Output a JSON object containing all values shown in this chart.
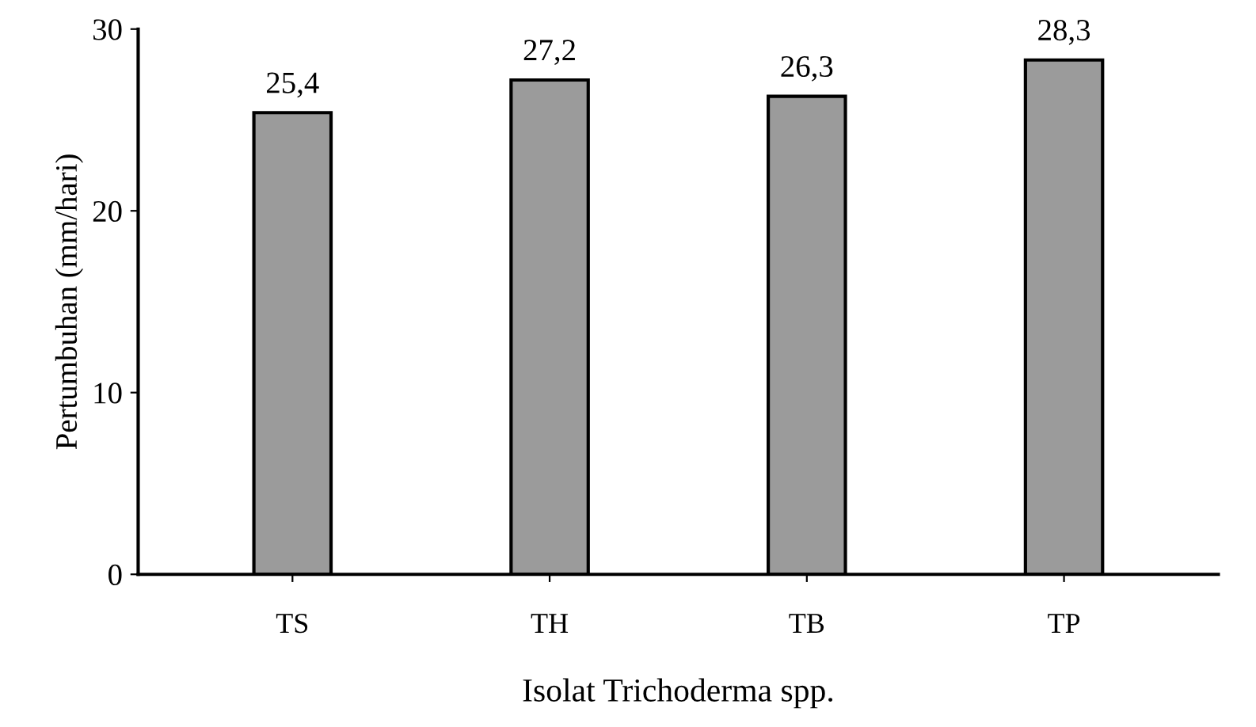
{
  "chart_data": {
    "type": "bar",
    "xlabel": "Isolat Trichoderma spp.",
    "ylabel": "Pertumbuhan (mm/hari)",
    "categories": [
      "TS",
      "TH",
      "TB",
      "TP"
    ],
    "values": [
      25.4,
      27.2,
      26.3,
      28.3
    ],
    "value_labels": [
      "25,4",
      "27,2",
      "26,3",
      "28,3"
    ],
    "color": "#9b9b9b",
    "ylim": [
      0,
      30
    ],
    "yticks": [
      0,
      10,
      20,
      30
    ],
    "grid": false,
    "legend": false
  }
}
